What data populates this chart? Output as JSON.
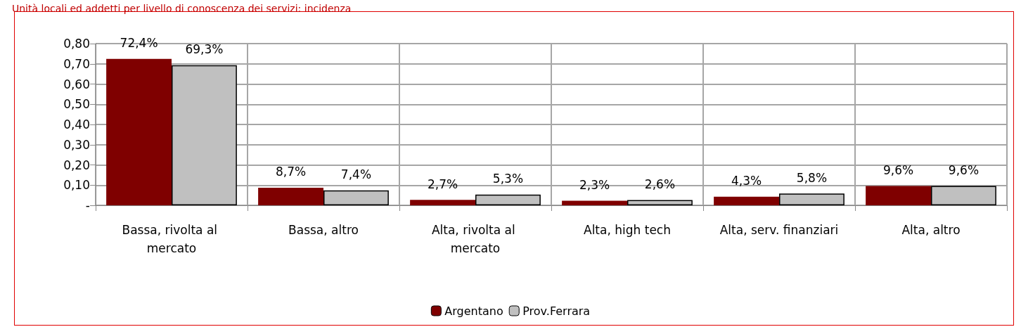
{
  "chart_data": {
    "type": "bar",
    "title": "Unità locali ed addetti per livello di conoscenza dei servizi: incidenza",
    "categories": [
      "Bassa, rivolta al mercato",
      "Bassa, altro",
      "Alta, rivolta al mercato",
      "Alta, high tech",
      "Alta, serv. finanziari",
      "Alta, altro"
    ],
    "series": [
      {
        "name": "Argentano",
        "color": "#7f0000",
        "values": [
          0.724,
          0.087,
          0.027,
          0.023,
          0.043,
          0.096
        ],
        "value_labels": [
          "72,4%",
          "8,7%",
          "2,7%",
          "2,3%",
          "4,3%",
          "9,6%"
        ]
      },
      {
        "name": "Prov.Ferrara",
        "color": "#c0c0c0",
        "values": [
          0.693,
          0.074,
          0.053,
          0.026,
          0.058,
          0.096
        ],
        "value_labels": [
          "69,3%",
          "7,4%",
          "5,3%",
          "2,6%",
          "5,8%",
          "9,6%"
        ]
      }
    ],
    "ylim": [
      0,
      0.8
    ],
    "yticks": [
      {
        "value": 0,
        "label": "-"
      },
      {
        "value": 0.1,
        "label": "0,10"
      },
      {
        "value": 0.2,
        "label": "0,20"
      },
      {
        "value": 0.3,
        "label": "0,30"
      },
      {
        "value": 0.4,
        "label": "0,40"
      },
      {
        "value": 0.5,
        "label": "0,50"
      },
      {
        "value": 0.6,
        "label": "0,60"
      },
      {
        "value": 0.7,
        "label": "0,70"
      },
      {
        "value": 0.8,
        "label": "0,80"
      }
    ],
    "grid": true,
    "legend": "bottom"
  }
}
